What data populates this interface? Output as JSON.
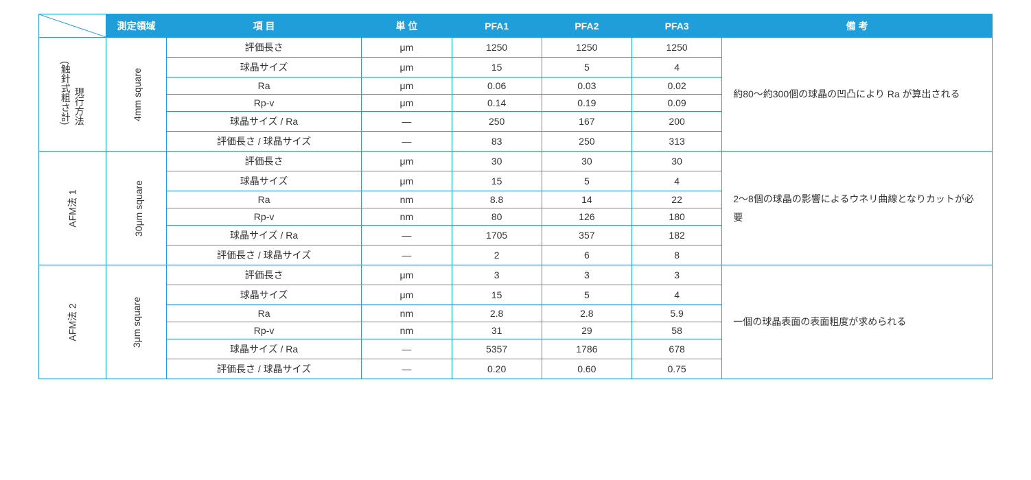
{
  "headers": {
    "area": "測定領域",
    "item": "項 目",
    "unit": "単 位",
    "pfa1": "PFA1",
    "pfa2": "PFA2",
    "pfa3": "PFA3",
    "remark": "備 考"
  },
  "items": {
    "eval_len": "評価長さ",
    "sph_size": "球晶サイズ",
    "ra": "Ra",
    "rpv": "Rp-v",
    "sph_over_ra": "球晶サイズ / Ra",
    "eval_over_sph": "評価長さ / 球晶サイズ"
  },
  "units": {
    "um": "μm",
    "nm": "nm",
    "dash": "―"
  },
  "groups": [
    {
      "method_line1": "現行方法",
      "method_line2": "(触針式粗さ計)",
      "area": "4mm square",
      "remark": "約80～約300個の球晶の凹凸により Ra が算出される",
      "rows": [
        {
          "item": "eval_len",
          "unit": "um",
          "pfa1": "1250",
          "pfa2": "1250",
          "pfa3": "1250"
        },
        {
          "item": "sph_size",
          "unit": "um",
          "pfa1": "15",
          "pfa2": "5",
          "pfa3": "4"
        },
        {
          "item": "ra",
          "unit": "um",
          "pfa1": "0.06",
          "pfa2": "0.03",
          "pfa3": "0.02"
        },
        {
          "item": "rpv",
          "unit": "um",
          "pfa1": "0.14",
          "pfa2": "0.19",
          "pfa3": "0.09"
        },
        {
          "item": "sph_over_ra",
          "unit": "dash",
          "pfa1": "250",
          "pfa2": "167",
          "pfa3": "200"
        },
        {
          "item": "eval_over_sph",
          "unit": "dash",
          "pfa1": "83",
          "pfa2": "250",
          "pfa3": "313"
        }
      ]
    },
    {
      "method_line1": "AFM法 1",
      "method_line2": "",
      "area": "30μm square",
      "remark": "2～8個の球晶の影響によるウネリ曲線となりカットが必要",
      "rows": [
        {
          "item": "eval_len",
          "unit": "um",
          "pfa1": "30",
          "pfa2": "30",
          "pfa3": "30"
        },
        {
          "item": "sph_size",
          "unit": "um",
          "pfa1": "15",
          "pfa2": "5",
          "pfa3": "4"
        },
        {
          "item": "ra",
          "unit": "nm",
          "pfa1": "8.8",
          "pfa2": "14",
          "pfa3": "22"
        },
        {
          "item": "rpv",
          "unit": "nm",
          "pfa1": "80",
          "pfa2": "126",
          "pfa3": "180"
        },
        {
          "item": "sph_over_ra",
          "unit": "dash",
          "pfa1": "1705",
          "pfa2": "357",
          "pfa3": "182"
        },
        {
          "item": "eval_over_sph",
          "unit": "dash",
          "pfa1": "2",
          "pfa2": "6",
          "pfa3": "8"
        }
      ]
    },
    {
      "method_line1": "AFM法 2",
      "method_line2": "",
      "area": "3μm square",
      "remark": "一個の球晶表面の表面粗度が求められる",
      "rows": [
        {
          "item": "eval_len",
          "unit": "um",
          "pfa1": "3",
          "pfa2": "3",
          "pfa3": "3"
        },
        {
          "item": "sph_size",
          "unit": "um",
          "pfa1": "15",
          "pfa2": "5",
          "pfa3": "4"
        },
        {
          "item": "ra",
          "unit": "nm",
          "pfa1": "2.8",
          "pfa2": "2.8",
          "pfa3": "5.9"
        },
        {
          "item": "rpv",
          "unit": "nm",
          "pfa1": "31",
          "pfa2": "29",
          "pfa3": "58"
        },
        {
          "item": "sph_over_ra",
          "unit": "dash",
          "pfa1": "5357",
          "pfa2": "1786",
          "pfa3": "678"
        },
        {
          "item": "eval_over_sph",
          "unit": "dash",
          "pfa1": "0.20",
          "pfa2": "0.60",
          "pfa3": "0.75"
        }
      ]
    }
  ],
  "style": {
    "header_bg": "#1f9ed9",
    "header_fg": "#ffffff",
    "border_color": "#1f9ed9",
    "body_bg": "#ffffff",
    "text_color": "#333333",
    "font_size_pt": 10.5
  }
}
